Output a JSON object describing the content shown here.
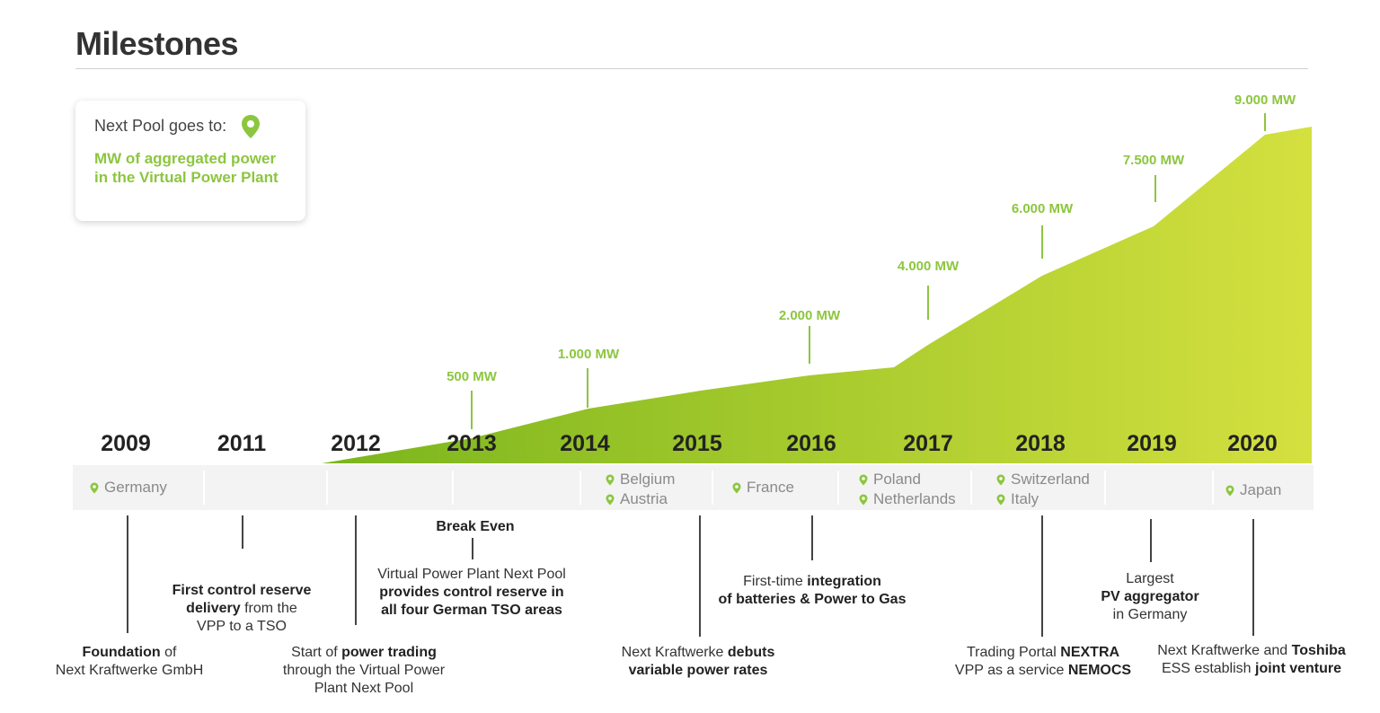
{
  "title": "Milestones",
  "colors": {
    "accent": "#8cc63f",
    "area_start": "#7ab51d",
    "area_end": "#d4e03f",
    "band": "#f3f3f3"
  },
  "legend": {
    "heading": "Next Pool goes to:",
    "icon": "location-pin-icon",
    "description": "MW of aggregated power in the Virtual Power Plant"
  },
  "years": [
    "2009",
    "2011",
    "2012",
    "2013",
    "2014",
    "2015",
    "2016",
    "2017",
    "2018",
    "2019",
    "2020"
  ],
  "mw_labels": [
    {
      "year": "2013",
      "label": "500 MW"
    },
    {
      "year": "2014",
      "label": "1.000 MW"
    },
    {
      "year": "2016",
      "label": "2.000 MW"
    },
    {
      "year": "2017",
      "label": "4.000 MW"
    },
    {
      "year": "2018",
      "label": "6.000 MW"
    },
    {
      "year": "2019",
      "label": "7.500 MW"
    },
    {
      "year": "2020",
      "label": "9.000 MW"
    }
  ],
  "countries": {
    "c2009": [
      "Germany"
    ],
    "c2014": [
      "Belgium",
      "Austria"
    ],
    "c2015": [
      "France"
    ],
    "c2017": [
      "Poland",
      "Netherlands"
    ],
    "c2018": [
      "Switzerland",
      "Italy"
    ],
    "c2020": [
      "Japan"
    ]
  },
  "events": {
    "e2009": {
      "bold1": "Foundation",
      "text1": " of",
      "line2": "Next Kraftwerke GmbH"
    },
    "e2011": {
      "line1": "First control reserve",
      "bold2": "delivery",
      "text2": " from the",
      "line3": "VPP to a TSO"
    },
    "e2012": {
      "text1": "Start of ",
      "bold1": "power trading",
      "line2": "through the Virtual Power",
      "line3": "Plant Next Pool"
    },
    "e2013a": {
      "line1": "Break Even"
    },
    "e2013b": {
      "line1": "Virtual Power Plant Next Pool",
      "line2": "provides control reserve in",
      "line3": "all four German TSO areas"
    },
    "e2015": {
      "text1": "Next Kraftwerke ",
      "bold1": "debuts",
      "line2": "variable power rates"
    },
    "e2016": {
      "text1": "First-time ",
      "bold1": "integration",
      "line2": "of batteries & Power to Gas"
    },
    "e2018": {
      "text1": "Trading Portal ",
      "bold1": "NEXTRA",
      "text2": "VPP as a service ",
      "bold2": "NEMOCS"
    },
    "e2019": {
      "line1": "Largest",
      "line2": "PV aggregator",
      "line3": "in Germany"
    },
    "e2020": {
      "text1": "Next Kraftwerke and ",
      "bold1": "Toshiba",
      "text2": "ESS establish ",
      "bold2": "joint venture"
    }
  }
}
